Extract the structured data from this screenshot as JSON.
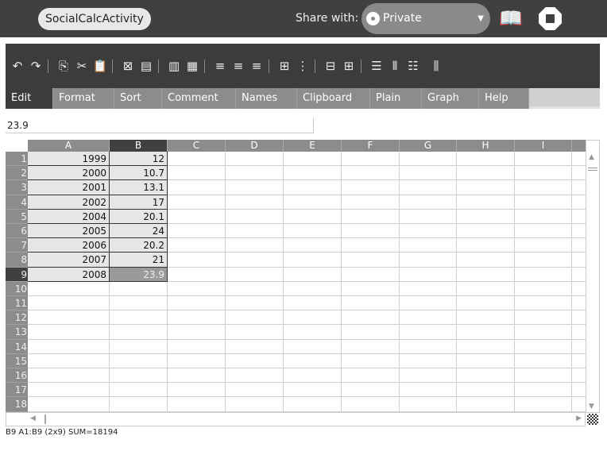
{
  "topbar": {
    "title": "SocialCalcActivity",
    "share_label": "Share with:",
    "share_value": "Private",
    "share_icon": "circle-dot-icon",
    "journal_icon": "journal-icon",
    "stop_icon": "stop-icon"
  },
  "toolbar": [
    "undo",
    "redo",
    "|",
    "copy",
    "cut",
    "paste",
    "|",
    "delete-contents",
    "paste-formats",
    "|",
    "insert-row",
    "insert-column",
    "|",
    "align-left",
    "align-center",
    "align-right",
    "|",
    "borders-on",
    "borders-off",
    "|",
    "merge-cells",
    "unmerge-cells",
    "|",
    "insert-row-after",
    "insert-column-after",
    "delete-row",
    "delete-column"
  ],
  "tabs": [
    "Edit",
    "Format",
    "Sort",
    "Comment",
    "Names",
    "Clipboard",
    "Plain",
    "Graph",
    "Help"
  ],
  "active_tab": "Edit",
  "formula": "23.9",
  "columns": [
    "A",
    "B",
    "C",
    "D",
    "E",
    "F",
    "G",
    "H",
    "I"
  ],
  "selected_cell": "B9",
  "rows": [
    [
      "1999",
      "12"
    ],
    [
      "2000",
      "10.7"
    ],
    [
      "2001",
      "13.1"
    ],
    [
      "2002",
      "17"
    ],
    [
      "2004",
      "20.1"
    ],
    [
      "2005",
      "24"
    ],
    [
      "2006",
      "20.2"
    ],
    [
      "2007",
      "21"
    ],
    [
      "2008",
      "23.9"
    ]
  ],
  "row_count": 18,
  "status": "B9   A1:B9 (2x9) SUM=18194"
}
